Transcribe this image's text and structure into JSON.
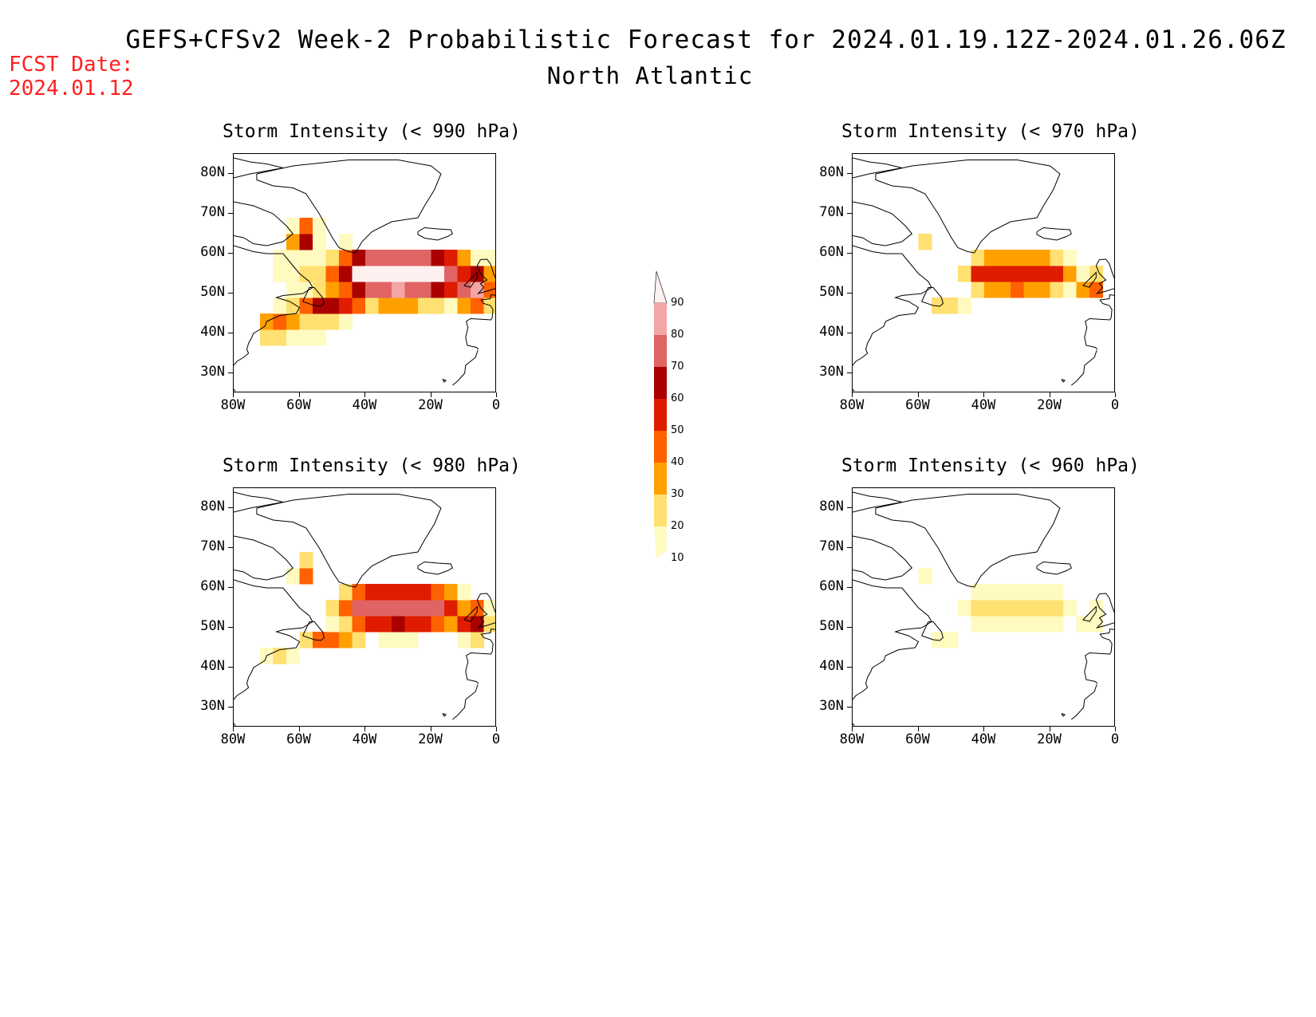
{
  "header": {
    "title_line1": "GEFS+CFSv2 Week-2 Probabilistic Forecast for 2024.01.19.12Z-2024.01.26.06Z",
    "title_line2": "North Atlantic",
    "fcst_label": "FCST Date:",
    "fcst_date": "2024.01.12"
  },
  "lat_labels": [
    "80N",
    "70N",
    "60N",
    "50N",
    "40N",
    "30N"
  ],
  "lon_labels": [
    "80W",
    "60W",
    "40W",
    "20W",
    "0"
  ],
  "panels": [
    {
      "id": "p990",
      "title": "Storm Intensity (< 990 hPa)",
      "level_offset": 0
    },
    {
      "id": "p970",
      "title": "Storm Intensity (< 970 hPa)",
      "level_offset": -4
    },
    {
      "id": "p980",
      "title": "Storm Intensity (< 980 hPa)",
      "level_offset": -2
    },
    {
      "id": "p960",
      "title": "Storm Intensity (< 960 hPa)",
      "level_offset": -7
    }
  ],
  "colorbar": {
    "labels": [
      "90",
      "80",
      "70",
      "60",
      "50",
      "40",
      "30",
      "20",
      "10"
    ],
    "colors": [
      "#fff0f0",
      "#f4a5a5",
      "#e06464",
      "#aa0000",
      "#e01c00",
      "#ff6000",
      "#ffa000",
      "#ffe070",
      "#fffac0"
    ]
  },
  "colors": {
    "fcst_red": "#ff2020"
  }
}
